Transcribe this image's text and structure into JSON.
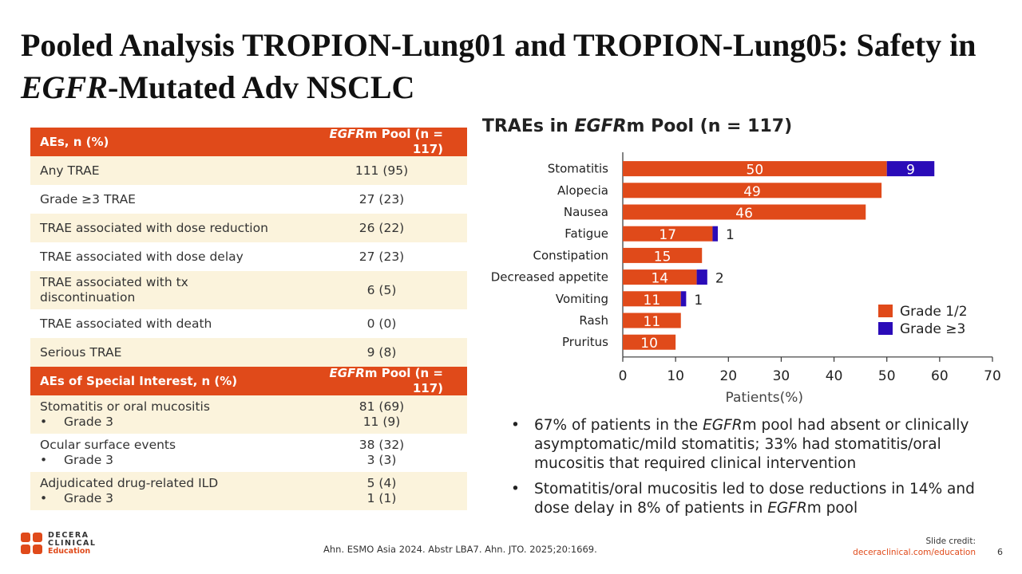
{
  "slide": {
    "title_part1": "Pooled Analysis TROPION-Lung01 and TROPION-Lung05: Safety in ",
    "title_italic": "EGFR",
    "title_part2": "-Mutated Adv NSCLC"
  },
  "table": {
    "header1_left": "AEs, n (%)",
    "header_right_italic": "EGFR",
    "header_right_rest": "m Pool (n = 117)",
    "rows": [
      {
        "label": "Any TRAE",
        "value": "111 (95)"
      },
      {
        "label": "Grade ≥3 TRAE",
        "value": "27 (23)"
      },
      {
        "label": "TRAE associated with dose reduction",
        "value": "26 (22)"
      },
      {
        "label": "TRAE associated with dose delay",
        "value": "27 (23)"
      },
      {
        "label": "TRAE associated with tx discontinuation",
        "value": "6 (5)"
      },
      {
        "label": "TRAE associated with death",
        "value": "0 (0)"
      },
      {
        "label": "Serious TRAE",
        "value": "9 (8)"
      }
    ],
    "header2_left": "AEs of Special Interest, n (%)",
    "special": [
      {
        "label": "Stomatitis or oral mucositis",
        "value": "81 (69)",
        "sub_label": "Grade 3",
        "sub_value": "11 (9)"
      },
      {
        "label": "Ocular surface events",
        "value": "38 (32)",
        "sub_label": "Grade 3",
        "sub_value": "3 (3)"
      },
      {
        "label": "Adjudicated drug-related ILD",
        "value": "5 (4)",
        "sub_label": "Grade 3",
        "sub_value": "1 (1)"
      }
    ],
    "bullet": "•"
  },
  "chart_title": {
    "prefix": "TRAEs in ",
    "italic": "EGFR",
    "rest": "m Pool (n = 117)"
  },
  "chart_data": {
    "type": "bar",
    "orientation": "horizontal",
    "stacked": true,
    "categories": [
      "Stomatitis",
      "Alopecia",
      "Nausea",
      "Fatigue",
      "Constipation",
      "Decreased appetite",
      "Vomiting",
      "Rash",
      "Pruritus"
    ],
    "series": [
      {
        "name": "Grade 1/2",
        "values": [
          50,
          49,
          46,
          17,
          15,
          14,
          11,
          11,
          10
        ],
        "color": "#e04a1a"
      },
      {
        "name": "Grade ≥3",
        "values": [
          9,
          0,
          0,
          1,
          0,
          2,
          1,
          0,
          0
        ],
        "color": "#2a0bb8"
      }
    ],
    "xlabel": "Patients(%)",
    "xlim": [
      0,
      70
    ],
    "xticks": [
      0,
      10,
      20,
      30,
      40,
      50,
      60,
      70
    ],
    "legend_position": "bottom-right"
  },
  "notes": [
    {
      "pre": "67% of patients in the ",
      "italic": "EGFR",
      "post": "m pool had absent or clinically asymptomatic/mild stomatitis; 33% had stomatitis/oral mucositis that required clinical intervention"
    },
    {
      "pre": "Stomatitis/oral mucositis led to dose reductions in 14% and dose delay in 8% of patients in ",
      "italic": "EGFR",
      "post": "m pool"
    }
  ],
  "footer": {
    "logo_line1": "DECERA",
    "logo_line2": "CLINICAL",
    "logo_line3": "Education",
    "citation": "Ahn. ESMO Asia 2024. Abstr LBA7. Ahn. JTO. 2025;20:1669.",
    "credit_label": "Slide credit:",
    "credit_link": "deceraclinical.com/education",
    "page_number": "6"
  },
  "colors": {
    "accent": "#e04a1a",
    "grade3": "#2a0bb8",
    "row_alt": "#fbf3dc"
  }
}
